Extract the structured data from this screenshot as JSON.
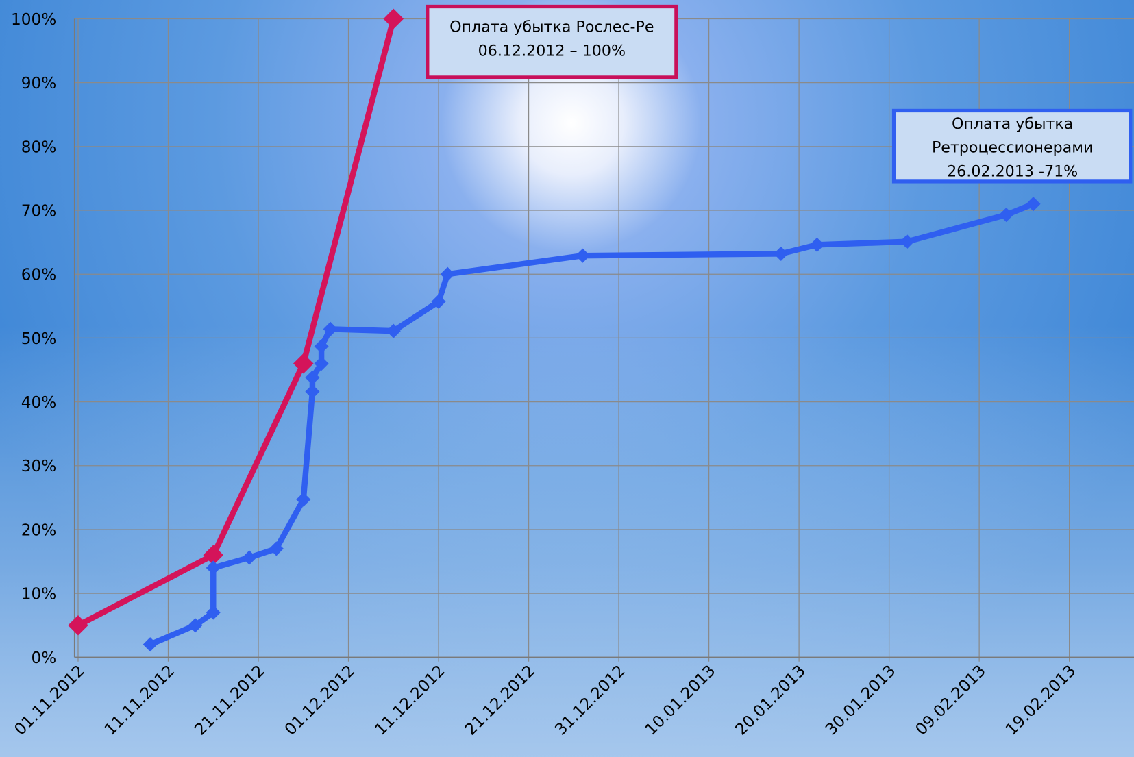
{
  "chart_data": {
    "type": "line",
    "xlim": [
      "01.11.2012",
      "28.02.2013"
    ],
    "xticks": [
      "01.11.2012",
      "11.11.2012",
      "21.11.2012",
      "01.12.2012",
      "11.12.2012",
      "21.12.2012",
      "31.12.2012",
      "10.01.2013",
      "20.01.2013",
      "30.01.2013",
      "09.02.2013",
      "19.02.2013"
    ],
    "ylim": [
      0,
      100
    ],
    "yticks": [
      {
        "value": 0,
        "label": "0%"
      },
      {
        "value": 10,
        "label": "10%"
      },
      {
        "value": 20,
        "label": "20%"
      },
      {
        "value": 30,
        "label": "30%"
      },
      {
        "value": 40,
        "label": "40%"
      },
      {
        "value": 50,
        "label": "50%"
      },
      {
        "value": 60,
        "label": "60%"
      },
      {
        "value": 70,
        "label": "70%"
      },
      {
        "value": 80,
        "label": "80%"
      },
      {
        "value": 90,
        "label": "90%"
      },
      {
        "value": 100,
        "label": "100%"
      }
    ],
    "grid": true,
    "series": [
      {
        "color": "#d4145a",
        "x": [
          "01.11.2012",
          "16.11.2012",
          "26.11.2012",
          "06.12.2012"
        ],
        "values": [
          5,
          16,
          46,
          100
        ]
      },
      {
        "color": "#2f5ff0",
        "x": [
          "09.11.2012",
          "14.11.2012",
          "16.11.2012",
          "16.11.2012",
          "20.11.2012",
          "23.11.2012",
          "26.11.2012",
          "27.11.2012",
          "27.11.2012",
          "28.11.2012",
          "28.11.2012",
          "29.11.2012",
          "06.12.2012",
          "11.12.2012",
          "12.12.2012",
          "27.12.2012",
          "18.01.2013",
          "22.01.2013",
          "01.02.2013",
          "12.02.2013",
          "15.02.2013"
        ],
        "values": [
          2,
          5,
          7,
          14,
          15.6,
          17,
          24.7,
          41.6,
          43.8,
          46,
          48.7,
          51.4,
          51.1,
          55.7,
          60,
          62.9,
          63.2,
          64.6,
          65.1,
          69.3,
          71
        ]
      }
    ],
    "annotations": [
      {
        "lines": [
          "Оплата убытка Рослес-Ре",
          "06.12.2012 – 100%"
        ]
      },
      {
        "lines": [
          "Оплата убытка",
          "Ретроцессионерами",
          "26.02.2013 -71%"
        ]
      }
    ]
  }
}
